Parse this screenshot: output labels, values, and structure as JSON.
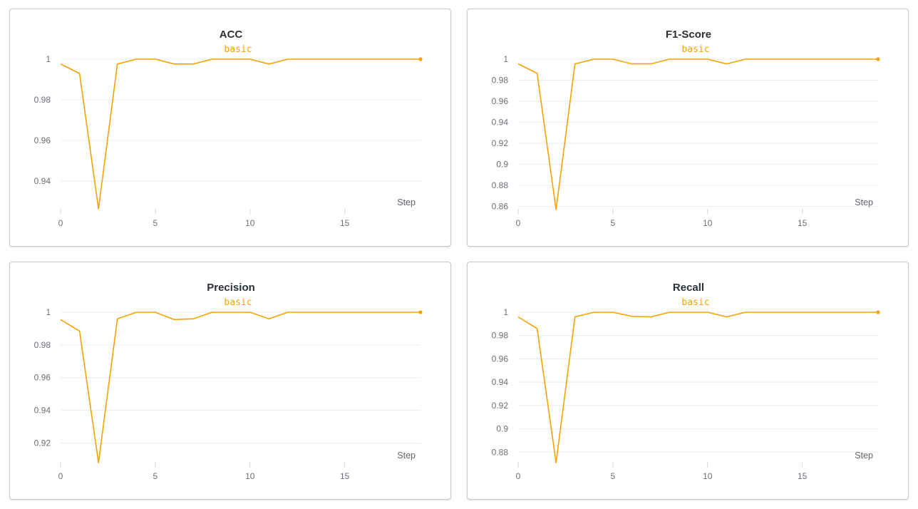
{
  "colors": {
    "series": "#f5a300",
    "grid": "#ececef",
    "text": "#2b2f36",
    "tick": "#6b6f76"
  },
  "chart_data": [
    {
      "type": "line",
      "title": "ACC",
      "xlabel": "Step",
      "ylabel": "",
      "xlim": [
        0,
        19
      ],
      "ylim": [
        0.926,
        1.0
      ],
      "xticks": [
        0,
        5,
        10,
        15
      ],
      "yticks": [
        0.94,
        0.96,
        0.98,
        1
      ],
      "ytick_labels": [
        "0.94",
        "0.96",
        "0.98",
        "1"
      ],
      "xtick_labels": [
        "0",
        "5",
        "10",
        "15"
      ],
      "legend": "top-center",
      "grid": true,
      "series": [
        {
          "name": "basic",
          "x": [
            0,
            1,
            2,
            3,
            4,
            5,
            6,
            7,
            8,
            9,
            10,
            11,
            12,
            13,
            14,
            15,
            16,
            17,
            18,
            19
          ],
          "y": [
            0.9976,
            0.993,
            0.9264,
            0.9976,
            1,
            1,
            0.9976,
            0.9976,
            1,
            1,
            1,
            0.9976,
            1,
            1,
            1,
            1,
            1,
            1,
            1,
            1
          ]
        }
      ]
    },
    {
      "type": "line",
      "title": "F1-Score",
      "xlabel": "Step",
      "ylabel": "",
      "xlim": [
        0,
        19
      ],
      "ylim": [
        0.857,
        1.0
      ],
      "xticks": [
        0,
        5,
        10,
        15
      ],
      "yticks": [
        0.86,
        0.88,
        0.9,
        0.92,
        0.94,
        0.96,
        0.98,
        1
      ],
      "ytick_labels": [
        "0.86",
        "0.88",
        "0.9",
        "0.92",
        "0.94",
        "0.96",
        "0.98",
        "1"
      ],
      "xtick_labels": [
        "0",
        "5",
        "10",
        "15"
      ],
      "legend": "top-center",
      "grid": true,
      "series": [
        {
          "name": "basic",
          "x": [
            0,
            1,
            2,
            3,
            4,
            5,
            6,
            7,
            8,
            9,
            10,
            11,
            12,
            13,
            14,
            15,
            16,
            17,
            18,
            19
          ],
          "y": [
            0.9955,
            0.9865,
            0.857,
            0.9955,
            1,
            1,
            0.9955,
            0.9955,
            1,
            1,
            1,
            0.9955,
            1,
            1,
            1,
            1,
            1,
            1,
            1,
            1
          ]
        }
      ]
    },
    {
      "type": "line",
      "title": "Precision",
      "xlabel": "Step",
      "ylabel": "",
      "xlim": [
        0,
        19
      ],
      "ylim": [
        0.908,
        1.0
      ],
      "xticks": [
        0,
        5,
        10,
        15
      ],
      "yticks": [
        0.92,
        0.94,
        0.96,
        0.98,
        1
      ],
      "ytick_labels": [
        "0.92",
        "0.94",
        "0.96",
        "0.98",
        "1"
      ],
      "xtick_labels": [
        "0",
        "5",
        "10",
        "15"
      ],
      "legend": "top-center",
      "grid": true,
      "series": [
        {
          "name": "basic",
          "x": [
            0,
            1,
            2,
            3,
            4,
            5,
            6,
            7,
            8,
            9,
            10,
            11,
            12,
            13,
            14,
            15,
            16,
            17,
            18,
            19
          ],
          "y": [
            0.9955,
            0.9885,
            0.908,
            0.996,
            1,
            1,
            0.9955,
            0.996,
            1,
            1,
            1,
            0.996,
            1,
            1,
            1,
            1,
            1,
            1,
            1,
            1
          ]
        }
      ]
    },
    {
      "type": "line",
      "title": "Recall",
      "xlabel": "Step",
      "ylabel": "",
      "xlim": [
        0,
        19
      ],
      "ylim": [
        0.871,
        1.0
      ],
      "xticks": [
        0,
        5,
        10,
        15
      ],
      "yticks": [
        0.88,
        0.9,
        0.92,
        0.94,
        0.96,
        0.98,
        1
      ],
      "ytick_labels": [
        "0.88",
        "0.9",
        "0.92",
        "0.94",
        "0.96",
        "0.98",
        "1"
      ],
      "xtick_labels": [
        "0",
        "5",
        "10",
        "15"
      ],
      "legend": "top-center",
      "grid": true,
      "series": [
        {
          "name": "basic",
          "x": [
            0,
            1,
            2,
            3,
            4,
            5,
            6,
            7,
            8,
            9,
            10,
            11,
            12,
            13,
            14,
            15,
            16,
            17,
            18,
            19
          ],
          "y": [
            0.996,
            0.986,
            0.871,
            0.996,
            1,
            1,
            0.9965,
            0.996,
            1,
            1,
            1,
            0.996,
            1,
            1,
            1,
            1,
            1,
            1,
            1,
            1
          ]
        }
      ]
    }
  ]
}
